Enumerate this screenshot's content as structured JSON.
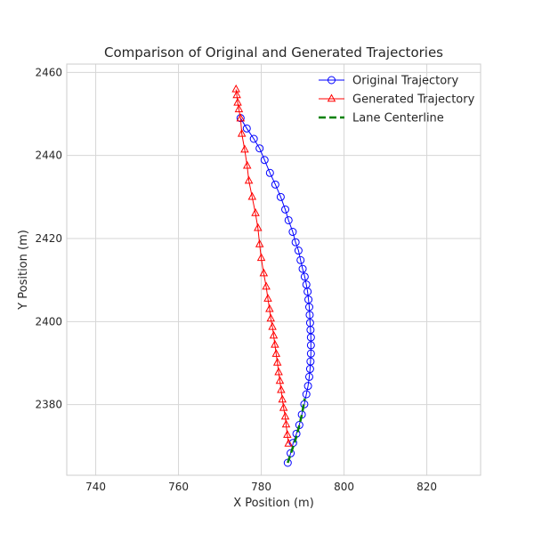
{
  "chart_data": {
    "type": "line",
    "title": "Comparison of Original and Generated Trajectories",
    "xlabel": "X Position (m)",
    "ylabel": "Y Position (m)",
    "xlim": [
      733,
      833
    ],
    "ylim": [
      2363,
      2462
    ],
    "xticks": [
      740,
      760,
      780,
      800,
      820
    ],
    "yticks": [
      2380,
      2400,
      2420,
      2440,
      2460
    ],
    "grid": true,
    "legend_position": "top-right",
    "series": [
      {
        "name": "Original Trajectory",
        "color": "#0000ff",
        "marker": "circle",
        "x": [
          775.0,
          776.5,
          778.2,
          779.6,
          780.8,
          782.1,
          783.4,
          784.7,
          785.8,
          786.6,
          787.6,
          788.3,
          789.0,
          789.5,
          790.0,
          790.5,
          790.9,
          791.2,
          791.4,
          791.6,
          791.7,
          791.8,
          791.9,
          792.0,
          792.0,
          792.0,
          791.9,
          791.8,
          791.6,
          791.3,
          790.9,
          790.4,
          789.8,
          789.2,
          788.5,
          787.7,
          787.1,
          786.4
        ],
        "y": [
          2449,
          2446.5,
          2444,
          2441.7,
          2438.9,
          2435.8,
          2433,
          2430,
          2427,
          2424.4,
          2421.6,
          2419.1,
          2417.1,
          2414.8,
          2412.7,
          2410.8,
          2408.9,
          2407.2,
          2405.3,
          2403.5,
          2401.6,
          2399.7,
          2398.0,
          2396.2,
          2394.3,
          2392.3,
          2390.4,
          2388.6,
          2386.7,
          2384.5,
          2382.5,
          2380.1,
          2377.6,
          2375.1,
          2373.0,
          2370.8,
          2368.3,
          2366.0
        ]
      },
      {
        "name": "Generated Trajectory",
        "color": "#ff0000",
        "marker": "triangle",
        "x": [
          773.9,
          774.1,
          774.3,
          774.6,
          775.0,
          775.3,
          776.0,
          776.6,
          777.0,
          777.8,
          778.6,
          779.2,
          779.6,
          780.0,
          780.6,
          781.2,
          781.6,
          782.0,
          782.3,
          782.7,
          783.0,
          783.3,
          783.6,
          783.9,
          784.2,
          784.5,
          784.8,
          785.1,
          785.4,
          785.8,
          786.0,
          786.3,
          786.6
        ],
        "y": [
          2455.9,
          2454.5,
          2452.7,
          2451.1,
          2448.9,
          2445.2,
          2441.4,
          2437.5,
          2433.9,
          2430.0,
          2426.1,
          2422.5,
          2418.6,
          2415.3,
          2411.6,
          2408.4,
          2405.5,
          2403.0,
          2400.7,
          2398.7,
          2396.6,
          2394.4,
          2392.2,
          2390.1,
          2387.8,
          2385.7,
          2383.5,
          2381.2,
          2379.2,
          2377.1,
          2375.2,
          2372.7,
          2370.6
        ]
      },
      {
        "name": "Lane Centerline",
        "color": "#008000",
        "marker": "none",
        "dashed": true,
        "x": [
          786.4,
          787.4,
          788.4,
          789.2,
          789.9,
          790.5
        ],
        "y": [
          2366.0,
          2369.0,
          2372.0,
          2375.0,
          2378.0,
          2381.5
        ]
      }
    ]
  }
}
